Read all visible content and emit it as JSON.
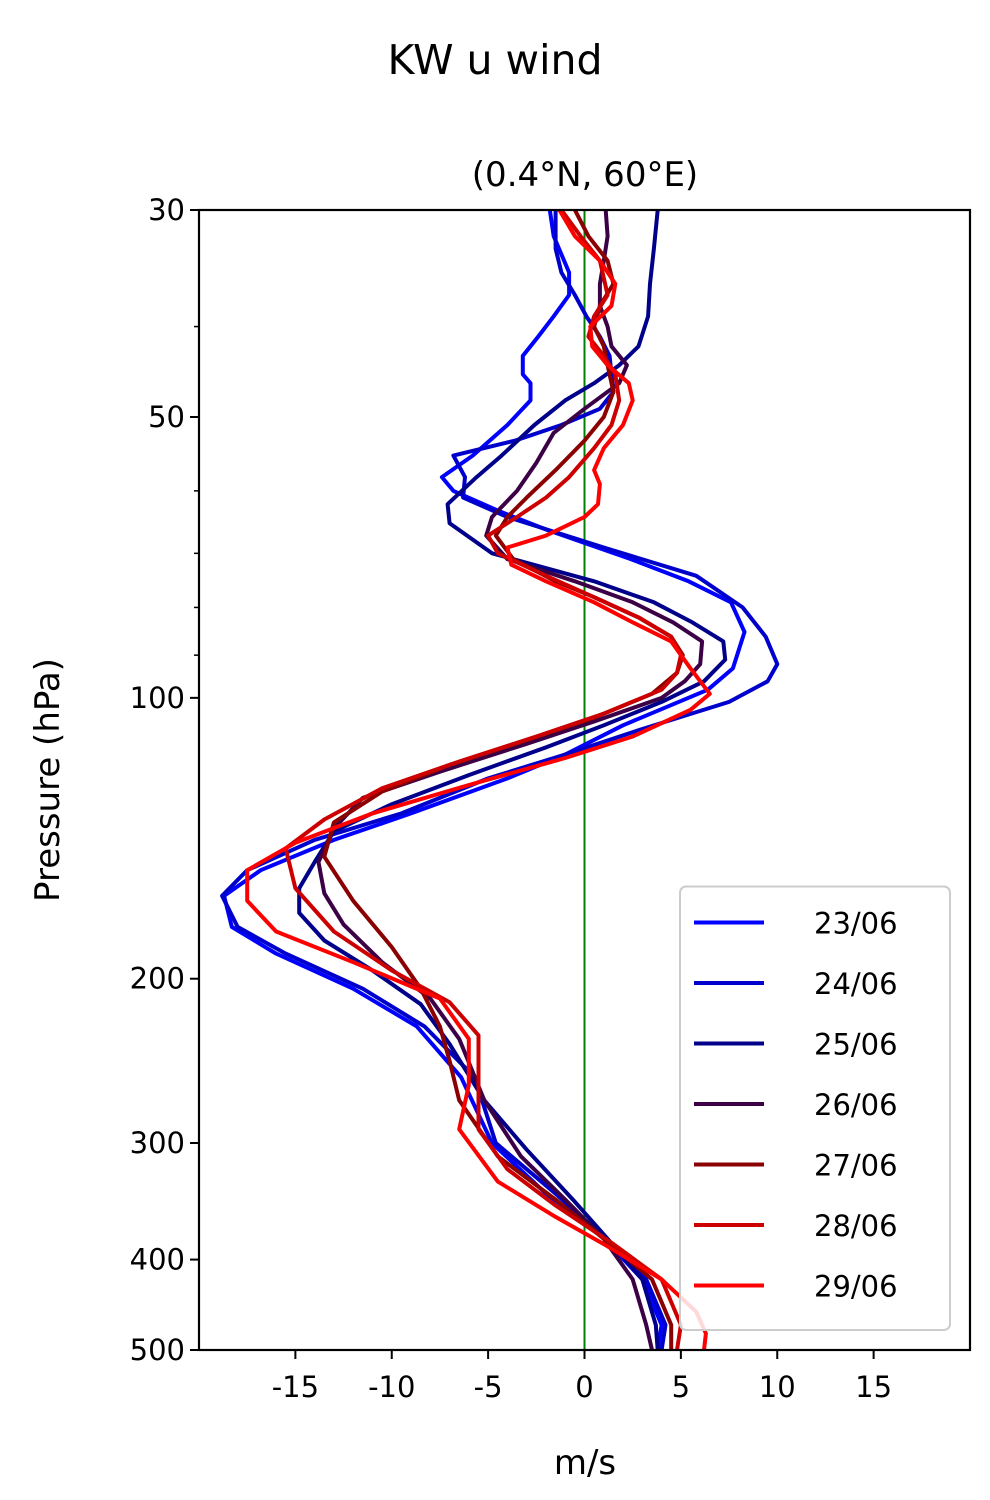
{
  "figure": {
    "suptitle": "KW u wind"
  },
  "chart_data": {
    "type": "line",
    "title": "(0.4°N, 60°E)",
    "xlabel": "m/s",
    "ylabel": "Pressure (hPa)",
    "xlim": [
      -20,
      20
    ],
    "ylim": [
      500,
      30
    ],
    "y_scale": "log",
    "y_inverted": true,
    "xticks": [
      -15,
      -10,
      -5,
      0,
      5,
      10,
      15
    ],
    "xtick_labels": [
      "-15",
      "-10",
      "-5",
      "0",
      "5",
      "10",
      "15"
    ],
    "yticks": [
      30,
      50,
      100,
      200,
      300,
      400,
      500
    ],
    "ytick_labels": [
      "30",
      "50",
      "100",
      "200",
      "300",
      "400",
      "500"
    ],
    "y_minor_ticks": [
      40,
      60,
      70,
      80,
      90
    ],
    "reference_line": {
      "x": 0,
      "color": "#008000"
    },
    "legend_position": "lower-right",
    "series": [
      {
        "name": "23/06",
        "color": "#0000ff",
        "points": [
          [
            -1.8,
            30
          ],
          [
            -1.6,
            32
          ],
          [
            -0.8,
            35
          ],
          [
            -0.8,
            37
          ],
          [
            -1.6,
            39
          ],
          [
            -2.4,
            41
          ],
          [
            -3.2,
            43
          ],
          [
            -3.2,
            45
          ],
          [
            -2.8,
            46
          ],
          [
            -2.8,
            48
          ],
          [
            -4.0,
            51
          ],
          [
            -5.8,
            55
          ],
          [
            -7.4,
            58
          ],
          [
            -6.8,
            60
          ],
          [
            -4.5,
            63
          ],
          [
            -2.0,
            66
          ],
          [
            2.4,
            71
          ],
          [
            5.4,
            75
          ],
          [
            7.6,
            79
          ],
          [
            8.3,
            85
          ],
          [
            7.7,
            93
          ],
          [
            6.4,
            98
          ],
          [
            2.0,
            107
          ],
          [
            -1.0,
            115
          ],
          [
            -4.0,
            122
          ],
          [
            -9.0,
            133
          ],
          [
            -13.0,
            142
          ],
          [
            -16.8,
            153
          ],
          [
            -18.7,
            163
          ],
          [
            -18.3,
            176
          ],
          [
            -16.0,
            188
          ],
          [
            -12.0,
            205
          ],
          [
            -8.7,
            225
          ],
          [
            -6.4,
            255
          ],
          [
            -4.8,
            300
          ],
          [
            -2.0,
            340
          ],
          [
            0.5,
            370
          ],
          [
            3.0,
            420
          ],
          [
            4.0,
            470
          ],
          [
            3.8,
            500
          ]
        ]
      },
      {
        "name": "24/06",
        "color": "#0000cc",
        "points": [
          [
            -1.5,
            30
          ],
          [
            -1.5,
            33
          ],
          [
            -1.2,
            35
          ],
          [
            -0.5,
            37
          ],
          [
            0.1,
            39
          ],
          [
            0.8,
            41
          ],
          [
            1.3,
            43
          ],
          [
            1.4,
            45
          ],
          [
            1.5,
            47
          ],
          [
            0.8,
            49
          ],
          [
            -1.2,
            51
          ],
          [
            -3.6,
            53
          ],
          [
            -6.8,
            55
          ],
          [
            -6.2,
            58
          ],
          [
            -6.3,
            61
          ],
          [
            -4.0,
            64
          ],
          [
            1.0,
            69
          ],
          [
            5.8,
            74
          ],
          [
            8.2,
            80
          ],
          [
            9.4,
            86
          ],
          [
            10.0,
            92
          ],
          [
            9.5,
            96
          ],
          [
            7.5,
            101
          ],
          [
            3.0,
            108
          ],
          [
            -1.0,
            115
          ],
          [
            -5.0,
            122
          ],
          [
            -9.5,
            133
          ],
          [
            -14.0,
            142
          ],
          [
            -17.5,
            153
          ],
          [
            -18.8,
            163
          ],
          [
            -18.0,
            176
          ],
          [
            -15.5,
            188
          ],
          [
            -11.5,
            205
          ],
          [
            -8.3,
            225
          ],
          [
            -5.7,
            255
          ],
          [
            -4.6,
            300
          ],
          [
            -1.5,
            340
          ],
          [
            0.5,
            370
          ],
          [
            3.2,
            420
          ],
          [
            4.2,
            470
          ],
          [
            4.0,
            500
          ]
        ]
      },
      {
        "name": "25/06",
        "color": "#00008b",
        "points": [
          [
            3.8,
            30
          ],
          [
            3.6,
            33
          ],
          [
            3.4,
            36
          ],
          [
            3.3,
            39
          ],
          [
            2.8,
            42
          ],
          [
            1.8,
            44
          ],
          [
            0.5,
            46
          ],
          [
            -1.0,
            48
          ],
          [
            -2.6,
            51
          ],
          [
            -4.3,
            55
          ],
          [
            -5.6,
            58
          ],
          [
            -7.1,
            62
          ],
          [
            -7.0,
            65
          ],
          [
            -4.8,
            70
          ],
          [
            0.5,
            75
          ],
          [
            3.6,
            79
          ],
          [
            5.6,
            83
          ],
          [
            7.2,
            87
          ],
          [
            7.3,
            91
          ],
          [
            6.2,
            96
          ],
          [
            4.0,
            101
          ],
          [
            1.0,
            107
          ],
          [
            -2.0,
            113
          ],
          [
            -6.0,
            121
          ],
          [
            -10.0,
            130
          ],
          [
            -13.0,
            139
          ],
          [
            -14.0,
            150
          ],
          [
            -14.8,
            160
          ],
          [
            -14.8,
            170
          ],
          [
            -13.5,
            182
          ],
          [
            -11.0,
            196
          ],
          [
            -8.5,
            213
          ],
          [
            -7.0,
            235
          ],
          [
            -5.2,
            270
          ],
          [
            -3.0,
            305
          ],
          [
            -0.6,
            345
          ],
          [
            1.2,
            380
          ],
          [
            3.0,
            420
          ],
          [
            3.7,
            470
          ],
          [
            3.8,
            500
          ]
        ]
      },
      {
        "name": "26/06",
        "color": "#3c0047",
        "points": [
          [
            1.1,
            30
          ],
          [
            1.2,
            32
          ],
          [
            1.0,
            34
          ],
          [
            0.8,
            36
          ],
          [
            0.8,
            38
          ],
          [
            1.2,
            40
          ],
          [
            1.4,
            42
          ],
          [
            2.2,
            44
          ],
          [
            1.8,
            46
          ],
          [
            0.0,
            49
          ],
          [
            -1.6,
            52
          ],
          [
            -2.5,
            56
          ],
          [
            -3.5,
            60
          ],
          [
            -4.8,
            64
          ],
          [
            -5.1,
            67
          ],
          [
            -4.0,
            71
          ],
          [
            -0.5,
            75
          ],
          [
            2.5,
            79
          ],
          [
            4.6,
            83
          ],
          [
            6.1,
            87
          ],
          [
            6.0,
            92
          ],
          [
            5.2,
            96
          ],
          [
            4.0,
            100
          ],
          [
            0.5,
            106
          ],
          [
            -3.0,
            112
          ],
          [
            -7.5,
            120
          ],
          [
            -11.5,
            128
          ],
          [
            -13.0,
            138
          ],
          [
            -13.8,
            150
          ],
          [
            -13.5,
            162
          ],
          [
            -12.5,
            175
          ],
          [
            -10.5,
            192
          ],
          [
            -8.0,
            210
          ],
          [
            -6.5,
            232
          ],
          [
            -5.2,
            270
          ],
          [
            -3.3,
            310
          ],
          [
            -1.0,
            345
          ],
          [
            1.0,
            380
          ],
          [
            2.5,
            420
          ],
          [
            3.2,
            470
          ],
          [
            3.5,
            500
          ]
        ]
      },
      {
        "name": "27/06",
        "color": "#8b0000",
        "points": [
          [
            -0.5,
            30
          ],
          [
            0.2,
            32
          ],
          [
            1.2,
            34
          ],
          [
            1.5,
            36
          ],
          [
            0.8,
            38
          ],
          [
            0.5,
            40
          ],
          [
            1.0,
            42
          ],
          [
            1.2,
            44
          ],
          [
            1.5,
            47
          ],
          [
            1.0,
            50
          ],
          [
            0.0,
            53
          ],
          [
            -1.5,
            57
          ],
          [
            -3.0,
            61
          ],
          [
            -4.0,
            64
          ],
          [
            -4.6,
            67
          ],
          [
            -3.7,
            71
          ],
          [
            -1.5,
            75
          ],
          [
            0.5,
            78
          ],
          [
            2.8,
            82
          ],
          [
            4.5,
            86
          ],
          [
            5.1,
            90
          ],
          [
            4.8,
            94
          ],
          [
            3.5,
            99
          ],
          [
            0.5,
            105
          ],
          [
            -3.0,
            111
          ],
          [
            -7.0,
            118
          ],
          [
            -10.5,
            126
          ],
          [
            -13.0,
            136
          ],
          [
            -13.5,
            148
          ],
          [
            -12.0,
            165
          ],
          [
            -10.0,
            185
          ],
          [
            -8.5,
            205
          ],
          [
            -7.5,
            225
          ],
          [
            -7.0,
            245
          ],
          [
            -6.5,
            270
          ],
          [
            -4.5,
            310
          ],
          [
            -1.5,
            345
          ],
          [
            1.0,
            380
          ],
          [
            3.5,
            420
          ],
          [
            4.5,
            470
          ],
          [
            4.5,
            500
          ]
        ]
      },
      {
        "name": "28/06",
        "color": "#cc0000",
        "points": [
          [
            -1.2,
            30
          ],
          [
            -0.2,
            32
          ],
          [
            0.8,
            34
          ],
          [
            1.2,
            37
          ],
          [
            0.5,
            39
          ],
          [
            0.2,
            41
          ],
          [
            1.0,
            43
          ],
          [
            1.6,
            45
          ],
          [
            1.8,
            48
          ],
          [
            1.4,
            51
          ],
          [
            0.5,
            54
          ],
          [
            -0.8,
            58
          ],
          [
            -2.0,
            61
          ],
          [
            -3.5,
            64
          ],
          [
            -5.0,
            67
          ],
          [
            -4.5,
            70
          ],
          [
            -2.0,
            74
          ],
          [
            0.5,
            78
          ],
          [
            2.8,
            82
          ],
          [
            4.5,
            86
          ],
          [
            5.0,
            90
          ],
          [
            4.8,
            94
          ],
          [
            4.0,
            98
          ],
          [
            1.0,
            104
          ],
          [
            -2.5,
            110
          ],
          [
            -6.5,
            117
          ],
          [
            -10.5,
            125
          ],
          [
            -13.5,
            135
          ],
          [
            -15.5,
            145
          ],
          [
            -15.0,
            160
          ],
          [
            -13.0,
            178
          ],
          [
            -10.0,
            196
          ],
          [
            -7.0,
            212
          ],
          [
            -5.5,
            230
          ],
          [
            -5.5,
            255
          ],
          [
            -5.5,
            290
          ],
          [
            -4.0,
            320
          ],
          [
            -1.5,
            350
          ],
          [
            1.5,
            385
          ],
          [
            4.0,
            420
          ],
          [
            5.0,
            470
          ],
          [
            4.8,
            500
          ]
        ]
      },
      {
        "name": "29/06",
        "color": "#ff0000",
        "points": [
          [
            -1.3,
            30
          ],
          [
            -0.5,
            32
          ],
          [
            0.8,
            34
          ],
          [
            1.6,
            36
          ],
          [
            1.4,
            38
          ],
          [
            0.3,
            40
          ],
          [
            0.4,
            42
          ],
          [
            1.2,
            44
          ],
          [
            2.3,
            46
          ],
          [
            2.5,
            48
          ],
          [
            2.0,
            51
          ],
          [
            1.0,
            54
          ],
          [
            0.5,
            57
          ],
          [
            0.8,
            59
          ],
          [
            0.7,
            62
          ],
          [
            0.0,
            64
          ],
          [
            -2.0,
            67
          ],
          [
            -4.0,
            69
          ],
          [
            -3.8,
            72
          ],
          [
            -2.0,
            75
          ],
          [
            0.5,
            79
          ],
          [
            2.5,
            83
          ],
          [
            4.5,
            87
          ],
          [
            5.5,
            93
          ],
          [
            6.5,
            99
          ],
          [
            5.5,
            103
          ],
          [
            2.5,
            110
          ],
          [
            -1.0,
            116
          ],
          [
            -6.0,
            124
          ],
          [
            -11.0,
            133
          ],
          [
            -15.0,
            143
          ],
          [
            -17.5,
            153
          ],
          [
            -17.5,
            165
          ],
          [
            -16.0,
            178
          ],
          [
            -12.0,
            192
          ],
          [
            -7.5,
            210
          ],
          [
            -6.0,
            232
          ],
          [
            -6.0,
            260
          ],
          [
            -6.5,
            290
          ],
          [
            -4.5,
            330
          ],
          [
            -1.5,
            360
          ],
          [
            1.0,
            385
          ],
          [
            4.0,
            420
          ],
          [
            5.8,
            455
          ],
          [
            6.3,
            480
          ],
          [
            6.2,
            500
          ]
        ]
      }
    ]
  }
}
